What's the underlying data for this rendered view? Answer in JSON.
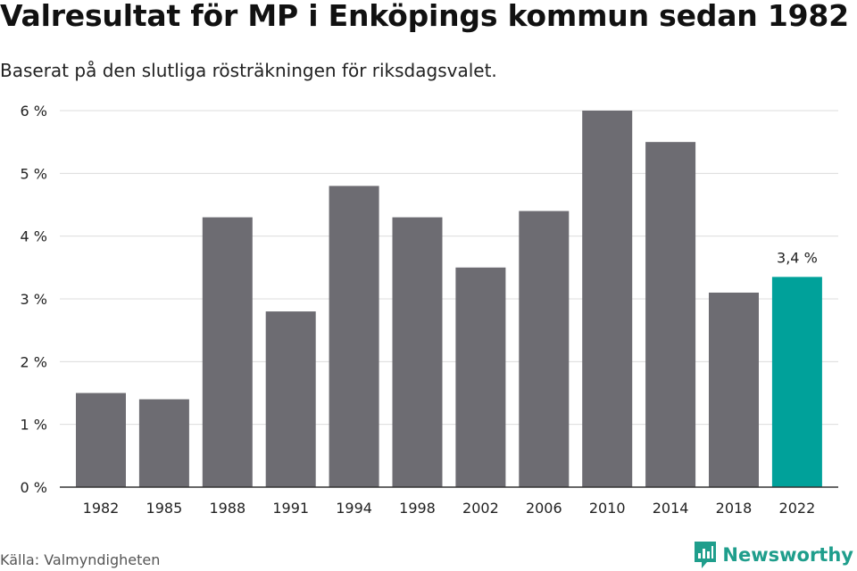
{
  "header": {
    "title": "Valresultat för MP i Enköpings kommun sedan 1982",
    "subtitle": "Baserat på den slutliga rösträkningen för riksdagsvalet."
  },
  "footer": {
    "source": "Källa: Valmyndigheten",
    "brand": "Newsworthy"
  },
  "colors": {
    "bar": "#6d6c72",
    "highlight": "#00a19a",
    "grid": "#dcdcdc",
    "axis": "#333333",
    "brand": "#1f9e8c"
  },
  "chart_data": {
    "type": "bar",
    "title": "Valresultat för MP i Enköpings kommun sedan 1982",
    "subtitle": "Baserat på den slutliga rösträkningen för riksdagsvalet.",
    "categories": [
      "1982",
      "1985",
      "1988",
      "1991",
      "1994",
      "1998",
      "2002",
      "2006",
      "2010",
      "2014",
      "2018",
      "2022"
    ],
    "values": [
      1.5,
      1.4,
      4.3,
      2.8,
      4.8,
      4.3,
      3.5,
      4.4,
      6.0,
      5.5,
      3.1,
      3.35
    ],
    "highlight_index": 11,
    "highlight_label": "3,4 %",
    "yticks": [
      {
        "value": 0,
        "label": "0 %"
      },
      {
        "value": 1,
        "label": "1 %"
      },
      {
        "value": 2,
        "label": "2 %"
      },
      {
        "value": 3,
        "label": "3 %"
      },
      {
        "value": 4,
        "label": "4 %"
      },
      {
        "value": 5,
        "label": "5 %"
      },
      {
        "value": 6,
        "label": "6 %"
      }
    ],
    "ylim": [
      0,
      6
    ],
    "grid": true,
    "xlabel": "",
    "ylabel": ""
  }
}
